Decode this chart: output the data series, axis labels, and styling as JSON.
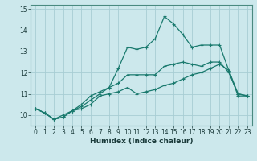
{
  "title": "",
  "xlabel": "Humidex (Indice chaleur)",
  "background_color": "#cce8ec",
  "grid_color": "#a8cdd4",
  "line_color": "#1a7a6e",
  "x_min": -0.5,
  "x_max": 23.5,
  "y_min": 9.5,
  "y_max": 15.2,
  "yticks": [
    10,
    11,
    12,
    13,
    14,
    15
  ],
  "xticks": [
    0,
    1,
    2,
    3,
    4,
    5,
    6,
    7,
    8,
    9,
    10,
    11,
    12,
    13,
    14,
    15,
    16,
    17,
    18,
    19,
    20,
    21,
    22,
    23
  ],
  "line1_x": [
    0,
    1,
    2,
    3,
    4,
    5,
    6,
    7,
    8,
    9,
    10,
    11,
    12,
    13,
    14,
    15,
    16,
    17,
    18,
    19,
    20,
    21,
    22,
    23
  ],
  "line1_y": [
    10.3,
    10.1,
    9.8,
    9.9,
    10.2,
    10.3,
    10.5,
    10.9,
    11.0,
    11.1,
    11.3,
    11.0,
    11.1,
    11.2,
    11.4,
    11.5,
    11.7,
    11.9,
    12.0,
    12.2,
    12.4,
    12.1,
    10.9,
    10.9
  ],
  "line2_x": [
    0,
    1,
    2,
    3,
    4,
    5,
    6,
    7,
    8,
    9,
    10,
    11,
    12,
    13,
    14,
    15,
    16,
    17,
    18,
    19,
    20,
    21,
    22,
    23
  ],
  "line2_y": [
    10.3,
    10.1,
    9.8,
    9.9,
    10.2,
    10.4,
    10.7,
    11.0,
    11.3,
    11.5,
    11.9,
    11.9,
    11.9,
    11.9,
    12.3,
    12.4,
    12.5,
    12.4,
    12.3,
    12.5,
    12.5,
    12.0,
    11.0,
    10.9
  ],
  "line3_x": [
    0,
    1,
    2,
    3,
    4,
    5,
    6,
    7,
    8,
    9,
    10,
    11,
    12,
    13,
    14,
    15,
    16,
    17,
    18,
    19,
    20,
    21,
    22,
    23
  ],
  "line3_y": [
    10.3,
    10.1,
    9.8,
    10.0,
    10.2,
    10.5,
    10.9,
    11.1,
    11.3,
    12.2,
    13.2,
    13.1,
    13.2,
    13.6,
    14.65,
    14.3,
    13.8,
    13.2,
    13.3,
    13.3,
    13.3,
    12.1,
    11.0,
    10.9
  ],
  "marker": "+",
  "markersize": 3,
  "linewidth": 0.9,
  "xlabel_fontsize": 6.5,
  "tick_fontsize": 5.5
}
